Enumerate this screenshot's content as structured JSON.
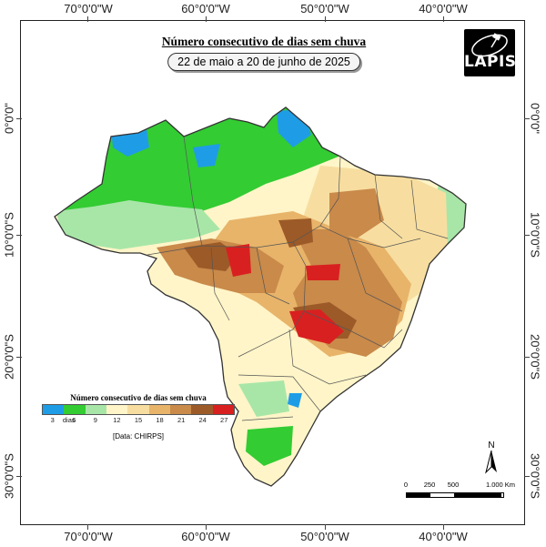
{
  "title": "Número consecutivo de dias sem chuva",
  "subtitle": "22 de maio a 20 de junho de 2025",
  "logo": {
    "text": "LAPIS",
    "icon": "satellite-icon"
  },
  "axes": {
    "longitude_labels": [
      "70°0'0\"W",
      "60°0'0\"W",
      "50°0'0\"W",
      "40°0'0\"W"
    ],
    "latitude_labels": [
      "0°0'0\"",
      "10°0'0\"S",
      "20°0'0\"S",
      "30°0'0\"S"
    ]
  },
  "legend": {
    "title": "Número consecutivo de dias sem chuva",
    "unit": "dias",
    "labels": [
      "3",
      "6",
      "9",
      "12",
      "15",
      "18",
      "21",
      "24",
      "27"
    ],
    "colors": [
      "#1e9de6",
      "#33cc33",
      "#a8e6a8",
      "#fff5c8",
      "#f7dea0",
      "#e8b46a",
      "#c98a4a",
      "#9c5a28",
      "#d92020"
    ],
    "source": "[Data: CHIRPS]"
  },
  "north_arrow": {
    "label": "N",
    "icon": "north-arrow-icon"
  },
  "scale_bar": {
    "labels": [
      "0",
      "250",
      "500",
      "1.000 Km"
    ],
    "stops": [
      0,
      250,
      500,
      1000
    ]
  },
  "chart_data": {
    "type": "choropleth-map",
    "title": "Número consecutivo de dias sem chuva",
    "period": "22 de maio a 20 de junho de 2025",
    "region": "Brasil",
    "classes_days": [
      3,
      6,
      9,
      12,
      15,
      18,
      21,
      24,
      27
    ],
    "longitude_range_deg": [
      -75,
      -33
    ],
    "latitude_range_deg": [
      -34,
      6
    ],
    "source": "CHIRPS"
  }
}
